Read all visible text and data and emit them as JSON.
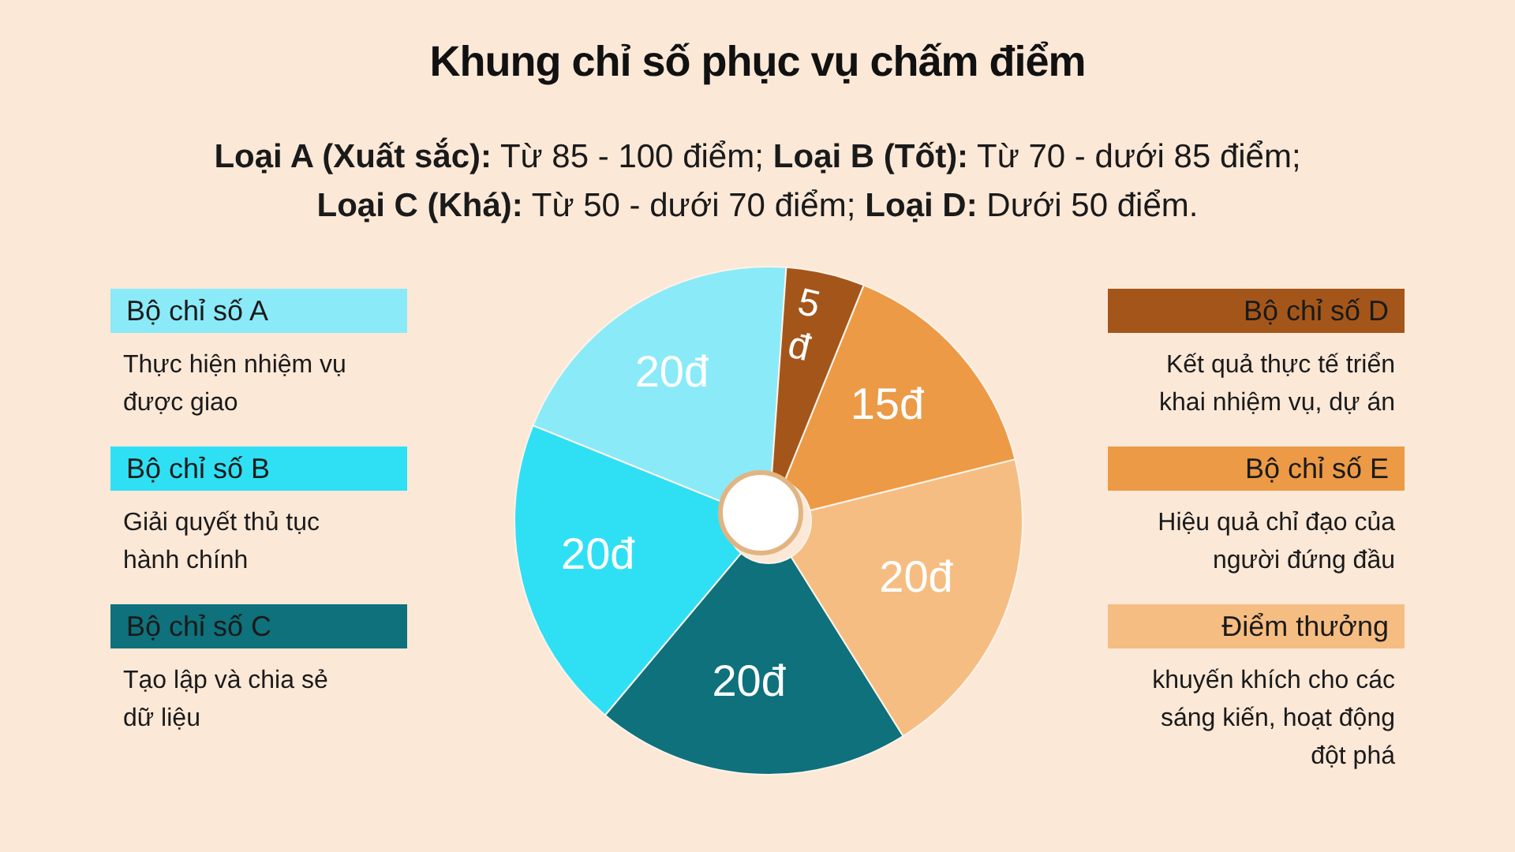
{
  "chart_data": {
    "type": "donut",
    "title": "Khung chỉ số phục vụ chấm điểm",
    "subtitle": "Loại A (Xuất sắc): Từ 85 - 100 điểm; Loại B (Tốt): Từ 70 - dưới 85 điểm; Loại C (Khá): Từ 50 - dưới 70 điểm; Loại D: Dưới 50 điểm.",
    "categories": [
      "Bộ chỉ số A",
      "Bộ chỉ số B",
      "Bộ chỉ số C",
      "Điểm thưởng",
      "Bộ chỉ số E",
      "Bộ chỉ số D"
    ],
    "values": [
      20,
      20,
      20,
      20,
      15,
      5
    ],
    "colors": [
      "#8aeaf8",
      "#2fe0f4",
      "#0e717b",
      "#f6bd82",
      "#ec9a46",
      "#a4561a"
    ],
    "value_labels": [
      "20đ",
      "20đ",
      "20đ",
      "20đ",
      "15đ",
      "5 đ"
    ],
    "annotations": [
      "Thực hiện nhiệm vụ được giao",
      "Giải quyết thủ tục hành chính",
      "Tạo lập và chia sẻ dữ liệu",
      "khuyến khích cho các sáng kiến, hoạt động đột phá",
      "Hiệu quả chỉ đạo của người đứng đầu",
      "Kết quả thực tế triển khai nhiệm vụ, dự án"
    ],
    "legend": "left"
  }
}
